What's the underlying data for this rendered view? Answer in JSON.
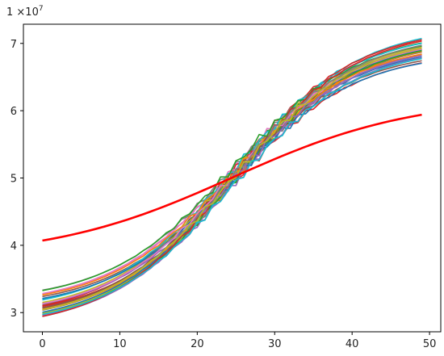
{
  "chart_data": {
    "type": "line",
    "title": "",
    "xlabel": "",
    "ylabel": "",
    "y_offset_text": "1 ×10",
    "y_offset_exponent": "7",
    "xlim": [
      -2.45,
      51.45
    ],
    "ylim": [
      2.715,
      7.285
    ],
    "x_ticks": [
      0,
      10,
      20,
      30,
      40,
      50
    ],
    "y_ticks": [
      3,
      4,
      5,
      6,
      7
    ],
    "x": [
      0,
      49
    ],
    "grid": false,
    "legend": "none",
    "ensemble": {
      "description_free": true,
      "count": 30,
      "start_range": [
        2.93,
        3.35
      ],
      "end_range": [
        6.67,
        7.09
      ],
      "midpoint_x": 24.5,
      "midpoint_y": 5.01,
      "colors": [
        "#1f77b4",
        "#ff7f0e",
        "#2ca02c",
        "#d62728",
        "#9467bd",
        "#8c564b",
        "#e377c2",
        "#7f7f7f",
        "#bcbd22",
        "#17becf"
      ]
    },
    "series": [
      {
        "start": 4.07,
        "end": 5.94,
        "color": "#ff0000"
      }
    ]
  }
}
